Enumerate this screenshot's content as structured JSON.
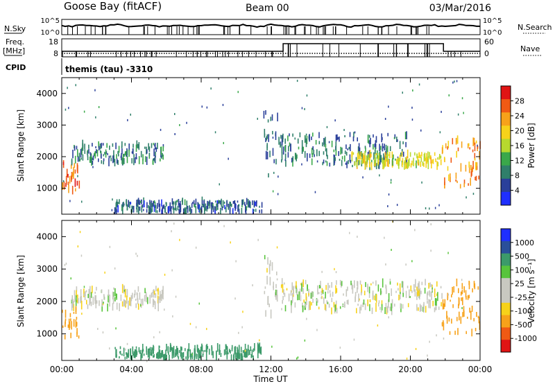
{
  "header": {
    "title": "Goose Bay (fitACF)",
    "beam": "Beam 00",
    "date": "03/Mar/2016"
  },
  "noise_panel": {
    "left_label": "N.Sky",
    "right_label": "N.Search",
    "left_ticks": [
      "10^5",
      "10^0"
    ],
    "right_ticks": [
      "10^5",
      "10^0"
    ]
  },
  "freq_panel": {
    "left_label_line1": "Freq.",
    "left_label_line2": "[MHz]",
    "right_label": "Nave",
    "left_ticks": [
      "18",
      "8"
    ],
    "right_ticks": [
      "60",
      "0"
    ]
  },
  "cpid": {
    "label": "CPID",
    "value": "themis (tau) -3310"
  },
  "colors": {
    "power_scale": [
      "#1f2fff",
      "#2a3f9a",
      "#2f7f6a",
      "#3aa84a",
      "#b7d92e",
      "#f7d21a",
      "#f7a21a",
      "#f05a14",
      "#e01414"
    ],
    "velocity_scale": [
      "#e01414",
      "#f05a14",
      "#f7a21a",
      "#f7d21a",
      "#c8c8c0",
      "#c8c8c0",
      "#58c43c",
      "#3c9a6a",
      "#2a4f9a",
      "#1f2fff"
    ]
  },
  "chart_data": [
    {
      "type": "heatmap",
      "title": "",
      "ylabel": "Slant Range [km]",
      "ylim": [
        180,
        4500
      ],
      "yticks": [
        "1000",
        "2000",
        "3000",
        "4000"
      ],
      "xlabel": "",
      "xlim": [
        "00:00",
        "24:00"
      ],
      "colorbar": {
        "label": "Power [dB]",
        "ticks": [
          "28",
          "24",
          "20",
          "16",
          "12",
          "8",
          "4"
        ],
        "range": [
          0,
          32
        ]
      },
      "regions": [
        {
          "t_start": 0.0,
          "t_end": 1.0,
          "range_start": 900,
          "range_end": 1800,
          "value": 26
        },
        {
          "t_start": 0.5,
          "t_end": 5.8,
          "range_start": 1800,
          "range_end": 2400,
          "value": 9
        },
        {
          "t_start": 3.0,
          "t_end": 11.5,
          "range_start": 250,
          "range_end": 600,
          "value": 7
        },
        {
          "t_start": 11.5,
          "t_end": 12.4,
          "range_start": 1400,
          "range_end": 3400,
          "value": 8
        },
        {
          "t_start": 12.4,
          "t_end": 19.8,
          "range_start": 1700,
          "range_end": 2700,
          "value": 8
        },
        {
          "t_start": 16.5,
          "t_end": 21.8,
          "range_start": 1700,
          "range_end": 2100,
          "value": 18
        },
        {
          "t_start": 21.8,
          "t_end": 24.0,
          "range_start": 1000,
          "range_end": 2600,
          "value": 24
        }
      ]
    },
    {
      "type": "heatmap",
      "title": "",
      "ylabel": "Slant Range [km]",
      "ylim": [
        180,
        4500
      ],
      "yticks": [
        "1000",
        "2000",
        "3000",
        "4000"
      ],
      "xlabel": "Time UT",
      "xlim": [
        "00:00",
        "24:00"
      ],
      "xticks": [
        "00:00",
        "04:00",
        "08:00",
        "12:00",
        "16:00",
        "20:00",
        "00:00"
      ],
      "colorbar": {
        "label": "Velocity [m s⁻¹]",
        "ticks": [
          "1000",
          "500",
          "100",
          "25",
          "-25",
          "-100",
          "-500",
          "-1000"
        ],
        "range": [
          -1000,
          1000
        ]
      },
      "regions": [
        {
          "t_start": 0.0,
          "t_end": 1.0,
          "range_start": 900,
          "range_end": 1800,
          "value": -300
        },
        {
          "t_start": 0.5,
          "t_end": 5.8,
          "range_start": 1800,
          "range_end": 2400,
          "value": 0
        },
        {
          "t_start": 3.0,
          "t_end": 11.5,
          "range_start": 250,
          "range_end": 600,
          "value": 150
        },
        {
          "t_start": 11.5,
          "t_end": 12.4,
          "range_start": 1400,
          "range_end": 3400,
          "value": 0
        },
        {
          "t_start": 12.4,
          "t_end": 21.8,
          "range_start": 1700,
          "range_end": 2600,
          "value": 0
        },
        {
          "t_start": 21.8,
          "t_end": 24.0,
          "range_start": 1000,
          "range_end": 2600,
          "value": -250
        }
      ]
    }
  ]
}
